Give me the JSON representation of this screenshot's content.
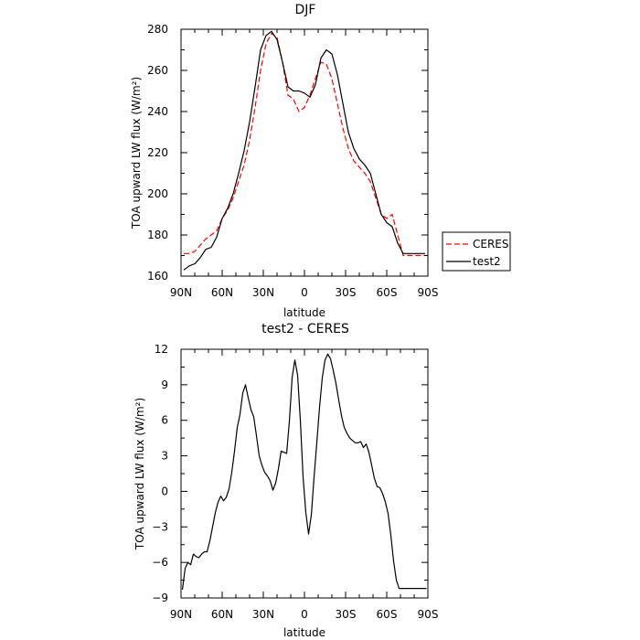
{
  "chart_data": [
    {
      "type": "line",
      "title": "DJF",
      "xlabel": "latitude",
      "ylabel": "TOA upward LW flux (W/m²)",
      "xlim": [
        90,
        -90
      ],
      "ylim": [
        160,
        280
      ],
      "xticks": [
        90,
        60,
        30,
        0,
        -30,
        -60,
        -90
      ],
      "xtick_labels": [
        "90N",
        "60N",
        "30N",
        "0",
        "30S",
        "60S",
        "90S"
      ],
      "yticks": [
        160,
        180,
        200,
        220,
        240,
        260,
        280
      ],
      "ytick_labels": [
        "160",
        "180",
        "200",
        "220",
        "240",
        "260",
        "280"
      ],
      "legend_position": "right",
      "series": [
        {
          "name": "CERES",
          "color": "#ff0000",
          "dash": true,
          "x": [
            88,
            84,
            80,
            76,
            72,
            68,
            64,
            60,
            56,
            52,
            48,
            44,
            40,
            36,
            32,
            28,
            24,
            20,
            16,
            12,
            8,
            4,
            0,
            -4,
            -8,
            -12,
            -16,
            -20,
            -24,
            -28,
            -32,
            -36,
            -40,
            -44,
            -48,
            -52,
            -56,
            -60,
            -64,
            -68,
            -72,
            -76,
            -80,
            -84,
            -88
          ],
          "y": [
            171,
            171,
            172,
            175,
            178,
            180,
            182,
            188,
            192,
            198,
            206,
            214,
            226,
            242,
            260,
            273,
            278,
            276,
            264,
            248,
            246,
            240,
            242,
            248,
            256,
            264,
            263,
            256,
            244,
            232,
            222,
            216,
            213,
            210,
            206,
            198,
            190,
            188,
            190,
            180,
            170,
            170,
            170,
            170,
            170
          ]
        },
        {
          "name": "test2",
          "color": "#000000",
          "dash": false,
          "x": [
            88,
            84,
            80,
            76,
            72,
            68,
            64,
            60,
            56,
            52,
            48,
            44,
            40,
            36,
            32,
            28,
            24,
            20,
            16,
            12,
            8,
            4,
            0,
            -4,
            -8,
            -12,
            -16,
            -20,
            -24,
            -28,
            -32,
            -36,
            -40,
            -44,
            -48,
            -52,
            -56,
            -60,
            -64,
            -68,
            -72,
            -76,
            -80,
            -84,
            -88
          ],
          "y": [
            163,
            165,
            166,
            169,
            173,
            174,
            179,
            188,
            193,
            200,
            210,
            221,
            235,
            252,
            270,
            277,
            279,
            275,
            264,
            252,
            250,
            250,
            249,
            247,
            253,
            266,
            270,
            268,
            258,
            244,
            230,
            222,
            217,
            214,
            210,
            200,
            190,
            186,
            184,
            176,
            171,
            171,
            171,
            171,
            171
          ]
        }
      ]
    },
    {
      "type": "line",
      "title": "test2 - CERES",
      "xlabel": "latitude",
      "ylabel": "TOA upward LW flux (W/m²)",
      "xlim": [
        90,
        -90
      ],
      "ylim": [
        -9,
        12
      ],
      "xticks": [
        90,
        60,
        30,
        0,
        -30,
        -60,
        -90
      ],
      "xtick_labels": [
        "90N",
        "60N",
        "30N",
        "0",
        "30S",
        "60S",
        "90S"
      ],
      "yticks": [
        -9,
        -6,
        -3,
        0,
        3,
        6,
        9,
        12
      ],
      "ytick_labels": [
        "−9",
        "−6",
        "−3",
        "0",
        "3",
        "6",
        "9",
        "12"
      ],
      "series": [
        {
          "color": "#000000",
          "dash": false,
          "x": [
            89,
            87,
            85,
            83,
            81,
            79,
            77,
            75,
            73,
            71,
            69,
            67,
            65,
            63,
            61,
            59,
            57,
            55,
            53,
            51,
            49,
            47,
            45,
            43,
            41,
            39,
            37,
            35,
            33,
            31,
            29,
            27,
            25,
            23,
            21,
            19,
            17,
            15,
            13,
            11,
            9,
            7,
            5,
            3,
            1,
            -1,
            -3,
            -5,
            -7,
            -9,
            -11,
            -13,
            -15,
            -17,
            -19,
            -21,
            -23,
            -25,
            -27,
            -29,
            -31,
            -33,
            -35,
            -37,
            -39,
            -41,
            -43,
            -45,
            -47,
            -49,
            -51,
            -53,
            -55,
            -57,
            -59,
            -61,
            -63,
            -65,
            -67,
            -69,
            -71,
            -73,
            -75,
            -77,
            -79,
            -81,
            -83,
            -85,
            -87,
            -89
          ],
          "y": [
            -8.3,
            -6.5,
            -6.0,
            -6.2,
            -5.3,
            -5.5,
            -5.6,
            -5.3,
            -5.1,
            -5.1,
            -4.2,
            -3.0,
            -1.8,
            -0.9,
            -0.4,
            -0.8,
            -0.5,
            0.2,
            1.6,
            3.4,
            5.4,
            6.5,
            8.3,
            9.0,
            7.9,
            6.9,
            6.3,
            4.7,
            3.0,
            2.2,
            1.6,
            1.3,
            0.9,
            0.1,
            0.7,
            1.9,
            3.4,
            3.3,
            3.2,
            5.9,
            9.6,
            11.1,
            9.8,
            6.0,
            1.2,
            -1.8,
            -3.6,
            -2.0,
            1.2,
            4.1,
            7.1,
            9.6,
            11.1,
            11.6,
            11.2,
            10.2,
            9.1,
            7.7,
            6.4,
            5.4,
            4.9,
            4.5,
            4.3,
            4.1,
            4.1,
            4.2,
            3.7,
            4.0,
            3.3,
            2.2,
            1.1,
            0.4,
            0.3,
            -0.2,
            -0.9,
            -1.9,
            -3.7,
            -5.9,
            -7.5,
            -8.2,
            -8.2,
            -8.2,
            -8.2,
            -8.2,
            -8.2,
            -8.2,
            -8.2,
            -8.2,
            -8.2,
            -8.2
          ]
        }
      ]
    }
  ]
}
